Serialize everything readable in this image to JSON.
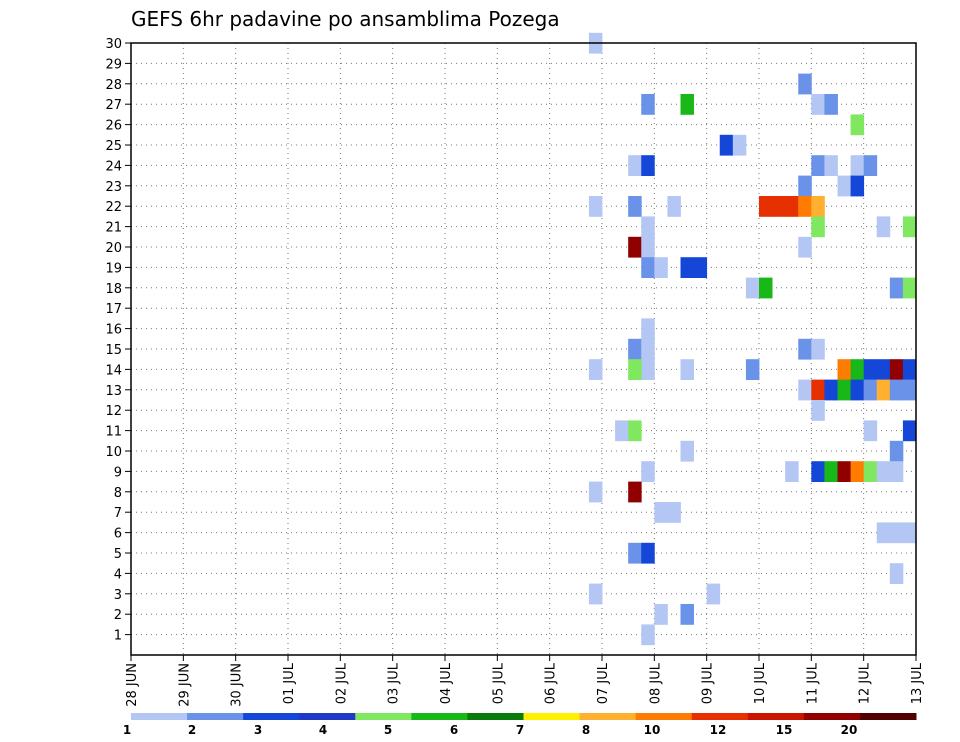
{
  "chart_data": {
    "type": "heatmap",
    "title": "GEFS 6hr padavine po ansamblima Pozega",
    "y_ticks": [
      "1",
      "2",
      "3",
      "4",
      "5",
      "6",
      "7",
      "8",
      "9",
      "10",
      "11",
      "12",
      "13",
      "14",
      "15",
      "16",
      "17",
      "18",
      "19",
      "20",
      "21",
      "22",
      "23",
      "24",
      "25",
      "26",
      "27",
      "28",
      "29",
      "30"
    ],
    "x_ticks": [
      "28 JUN",
      "29 JUN",
      "30 JUN",
      "01 JUL",
      "02 JUL",
      "03 JUL",
      "04 JUL",
      "05 JUL",
      "06 JUL",
      "07 JUL",
      "08 JUL",
      "09 JUL",
      "10 JUL",
      "11 JUL",
      "12 JUL",
      "13 JUL"
    ],
    "x_range_days": [
      0,
      15
    ],
    "y_range": [
      0,
      30
    ],
    "grid": true,
    "colorbar": {
      "labels": [
        "1",
        "2",
        "3",
        "4",
        "5",
        "6",
        "7",
        "8",
        "10",
        "12",
        "15",
        "20"
      ],
      "colors": [
        "#b4c7f4",
        "#6a92e8",
        "#1447d8",
        "#1e38c8",
        "#80e860",
        "#18b818",
        "#0a7a0a",
        "#fff000",
        "#ffb030",
        "#ff7c00",
        "#e63000",
        "#c81400",
        "#900000",
        "#500000"
      ]
    },
    "cells": [
      {
        "day": 8.75,
        "member": 30,
        "color": "#b4c7f4"
      },
      {
        "day": 12.75,
        "member": 28,
        "color": "#6a92e8"
      },
      {
        "day": 9.75,
        "member": 27,
        "color": "#6a92e8"
      },
      {
        "day": 10.5,
        "member": 27,
        "color": "#18b818"
      },
      {
        "day": 13.0,
        "member": 27,
        "color": "#b4c7f4"
      },
      {
        "day": 13.25,
        "member": 27,
        "color": "#6a92e8"
      },
      {
        "day": 13.75,
        "member": 26,
        "color": "#80e860"
      },
      {
        "day": 11.25,
        "member": 25,
        "color": "#1447d8"
      },
      {
        "day": 11.5,
        "member": 25,
        "color": "#b4c7f4"
      },
      {
        "day": 9.5,
        "member": 24,
        "color": "#b4c7f4"
      },
      {
        "day": 9.75,
        "member": 24,
        "color": "#1447d8"
      },
      {
        "day": 13.0,
        "member": 24,
        "color": "#6a92e8"
      },
      {
        "day": 13.25,
        "member": 24,
        "color": "#b4c7f4"
      },
      {
        "day": 13.75,
        "member": 24,
        "color": "#b4c7f4"
      },
      {
        "day": 14.0,
        "member": 24,
        "color": "#6a92e8"
      },
      {
        "day": 12.75,
        "member": 23,
        "color": "#6a92e8"
      },
      {
        "day": 13.5,
        "member": 23,
        "color": "#b4c7f4"
      },
      {
        "day": 13.75,
        "member": 23,
        "color": "#1447d8"
      },
      {
        "day": 8.75,
        "member": 22,
        "color": "#b4c7f4"
      },
      {
        "day": 9.5,
        "member": 22,
        "color": "#6a92e8"
      },
      {
        "day": 10.25,
        "member": 22,
        "color": "#b4c7f4"
      },
      {
        "day": 12.0,
        "member": 22,
        "color": "#e63000"
      },
      {
        "day": 12.25,
        "member": 22,
        "color": "#e63000"
      },
      {
        "day": 12.5,
        "member": 22,
        "color": "#e63000"
      },
      {
        "day": 12.75,
        "member": 22,
        "color": "#ff7c00"
      },
      {
        "day": 13.0,
        "member": 22,
        "color": "#ffb030"
      },
      {
        "day": 9.75,
        "member": 21,
        "color": "#b4c7f4"
      },
      {
        "day": 13.0,
        "member": 21,
        "color": "#80e860"
      },
      {
        "day": 14.25,
        "member": 21,
        "color": "#b4c7f4"
      },
      {
        "day": 14.75,
        "member": 21,
        "color": "#80e860"
      },
      {
        "day": 9.5,
        "member": 20,
        "color": "#900000"
      },
      {
        "day": 9.75,
        "member": 20,
        "color": "#b4c7f4"
      },
      {
        "day": 12.75,
        "member": 20,
        "color": "#b4c7f4"
      },
      {
        "day": 9.75,
        "member": 19,
        "color": "#6a92e8"
      },
      {
        "day": 10.0,
        "member": 19,
        "color": "#b4c7f4"
      },
      {
        "day": 10.5,
        "member": 19,
        "color": "#1447d8"
      },
      {
        "day": 10.75,
        "member": 19,
        "color": "#1447d8"
      },
      {
        "day": 11.75,
        "member": 18,
        "color": "#b4c7f4"
      },
      {
        "day": 12.0,
        "member": 18,
        "color": "#18b818"
      },
      {
        "day": 14.5,
        "member": 18,
        "color": "#6a92e8"
      },
      {
        "day": 14.75,
        "member": 18,
        "color": "#80e860"
      },
      {
        "day": 9.75,
        "member": 16,
        "color": "#b4c7f4"
      },
      {
        "day": 9.5,
        "member": 15,
        "color": "#6a92e8"
      },
      {
        "day": 9.75,
        "member": 15,
        "color": "#b4c7f4"
      },
      {
        "day": 12.75,
        "member": 15,
        "color": "#6a92e8"
      },
      {
        "day": 13.0,
        "member": 15,
        "color": "#b4c7f4"
      },
      {
        "day": 8.75,
        "member": 14,
        "color": "#b4c7f4"
      },
      {
        "day": 9.75,
        "member": 14,
        "color": "#b4c7f4"
      },
      {
        "day": 9.5,
        "member": 14,
        "color": "#80e860"
      },
      {
        "day": 10.5,
        "member": 14,
        "color": "#b4c7f4"
      },
      {
        "day": 11.75,
        "member": 14,
        "color": "#6a92e8"
      },
      {
        "day": 13.5,
        "member": 14,
        "color": "#ff7c00"
      },
      {
        "day": 13.75,
        "member": 14,
        "color": "#18b818"
      },
      {
        "day": 14.0,
        "member": 14,
        "color": "#1447d8"
      },
      {
        "day": 14.25,
        "member": 14,
        "color": "#1447d8"
      },
      {
        "day": 14.5,
        "member": 14,
        "color": "#900000"
      },
      {
        "day": 14.75,
        "member": 14,
        "color": "#1447d8"
      },
      {
        "day": 12.75,
        "member": 13,
        "color": "#b4c7f4"
      },
      {
        "day": 13.0,
        "member": 13,
        "color": "#e63000"
      },
      {
        "day": 13.25,
        "member": 13,
        "color": "#1447d8"
      },
      {
        "day": 13.5,
        "member": 13,
        "color": "#18b818"
      },
      {
        "day": 13.75,
        "member": 13,
        "color": "#1447d8"
      },
      {
        "day": 14.0,
        "member": 13,
        "color": "#6a92e8"
      },
      {
        "day": 14.25,
        "member": 13,
        "color": "#ffb030"
      },
      {
        "day": 14.5,
        "member": 13,
        "color": "#6a92e8"
      },
      {
        "day": 14.75,
        "member": 13,
        "color": "#6a92e8"
      },
      {
        "day": 13.0,
        "member": 12,
        "color": "#b4c7f4"
      },
      {
        "day": 9.25,
        "member": 11,
        "color": "#b4c7f4"
      },
      {
        "day": 9.5,
        "member": 11,
        "color": "#80e860"
      },
      {
        "day": 14.0,
        "member": 11,
        "color": "#b4c7f4"
      },
      {
        "day": 14.75,
        "member": 11,
        "color": "#1447d8"
      },
      {
        "day": 10.5,
        "member": 10,
        "color": "#b4c7f4"
      },
      {
        "day": 14.5,
        "member": 10,
        "color": "#6a92e8"
      },
      {
        "day": 9.75,
        "member": 9,
        "color": "#b4c7f4"
      },
      {
        "day": 12.5,
        "member": 9,
        "color": "#b4c7f4"
      },
      {
        "day": 13.0,
        "member": 9,
        "color": "#1447d8"
      },
      {
        "day": 13.25,
        "member": 9,
        "color": "#18b818"
      },
      {
        "day": 13.5,
        "member": 9,
        "color": "#900000"
      },
      {
        "day": 13.75,
        "member": 9,
        "color": "#ff7c00"
      },
      {
        "day": 14.0,
        "member": 9,
        "color": "#80e860"
      },
      {
        "day": 14.25,
        "member": 9,
        "color": "#b4c7f4"
      },
      {
        "day": 14.5,
        "member": 9,
        "color": "#b4c7f4"
      },
      {
        "day": 8.75,
        "member": 8,
        "color": "#b4c7f4"
      },
      {
        "day": 9.5,
        "member": 8,
        "color": "#900000"
      },
      {
        "day": 10.0,
        "member": 7,
        "color": "#b4c7f4"
      },
      {
        "day": 10.25,
        "member": 7,
        "color": "#b4c7f4"
      },
      {
        "day": 14.25,
        "member": 6,
        "color": "#b4c7f4"
      },
      {
        "day": 14.5,
        "member": 6,
        "color": "#b4c7f4"
      },
      {
        "day": 14.75,
        "member": 6,
        "color": "#b4c7f4"
      },
      {
        "day": 9.5,
        "member": 5,
        "color": "#6a92e8"
      },
      {
        "day": 9.75,
        "member": 5,
        "color": "#1447d8"
      },
      {
        "day": 14.5,
        "member": 4,
        "color": "#b4c7f4"
      },
      {
        "day": 8.75,
        "member": 3,
        "color": "#b4c7f4"
      },
      {
        "day": 11.0,
        "member": 3,
        "color": "#b4c7f4"
      },
      {
        "day": 10.0,
        "member": 2,
        "color": "#b4c7f4"
      },
      {
        "day": 10.5,
        "member": 2,
        "color": "#6a92e8"
      },
      {
        "day": 9.75,
        "member": 1,
        "color": "#b4c7f4"
      }
    ]
  }
}
